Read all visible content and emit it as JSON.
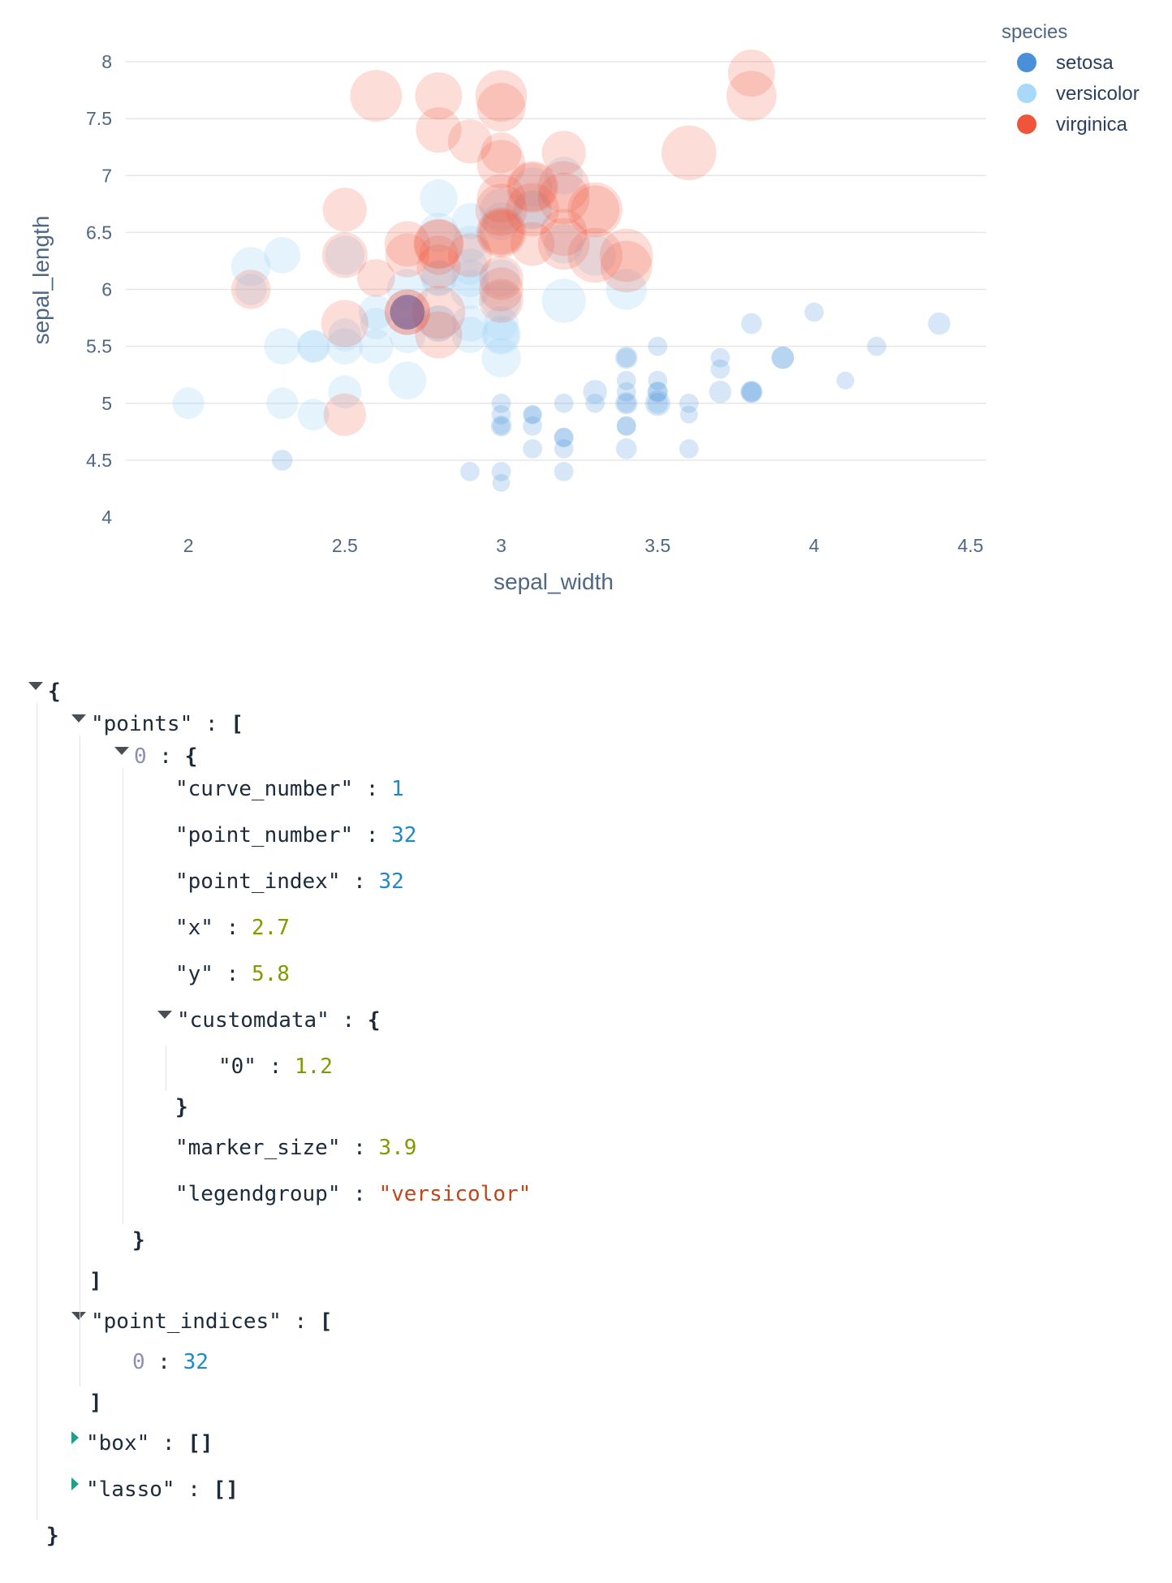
{
  "chart_data": {
    "type": "scatter",
    "title": "",
    "xlabel": "sepal_width",
    "ylabel": "sepal_length",
    "xlim": [
      1.8,
      4.55
    ],
    "ylim": [
      4.0,
      8.1
    ],
    "x_ticks": [
      "2",
      "2.5",
      "3",
      "3.5",
      "4",
      "4.5"
    ],
    "y_ticks": [
      "4",
      "4.5",
      "5",
      "5.5",
      "6",
      "6.5",
      "7",
      "7.5",
      "8"
    ],
    "grid": true,
    "legend": {
      "title": "species",
      "placement": "top-right"
    },
    "series": [
      {
        "name": "setosa",
        "color": "#4a90d9",
        "opacity": 0.22,
        "points": [
          [
            3.5,
            5.1,
            0.2
          ],
          [
            3.0,
            4.9,
            0.2
          ],
          [
            3.2,
            4.7,
            0.2
          ],
          [
            3.1,
            4.6,
            0.2
          ],
          [
            3.6,
            5.0,
            0.2
          ],
          [
            3.9,
            5.4,
            0.4
          ],
          [
            3.4,
            4.6,
            0.3
          ],
          [
            3.4,
            5.0,
            0.2
          ],
          [
            2.9,
            4.4,
            0.2
          ],
          [
            3.1,
            4.9,
            0.1
          ],
          [
            3.7,
            5.4,
            0.2
          ],
          [
            3.4,
            4.8,
            0.2
          ],
          [
            3.0,
            4.8,
            0.1
          ],
          [
            3.0,
            4.3,
            0.1
          ],
          [
            4.0,
            5.8,
            0.2
          ],
          [
            4.4,
            5.7,
            0.4
          ],
          [
            3.9,
            5.4,
            0.4
          ],
          [
            3.5,
            5.1,
            0.3
          ],
          [
            3.8,
            5.7,
            0.3
          ],
          [
            3.8,
            5.1,
            0.3
          ],
          [
            3.4,
            5.4,
            0.2
          ],
          [
            3.7,
            5.1,
            0.4
          ],
          [
            3.6,
            4.6,
            0.2
          ],
          [
            3.3,
            5.1,
            0.5
          ],
          [
            3.4,
            4.8,
            0.2
          ],
          [
            3.0,
            5.0,
            0.2
          ],
          [
            3.4,
            5.0,
            0.4
          ],
          [
            3.5,
            5.2,
            0.2
          ],
          [
            3.4,
            5.2,
            0.2
          ],
          [
            3.2,
            4.7,
            0.2
          ],
          [
            3.1,
            4.8,
            0.2
          ],
          [
            3.4,
            5.4,
            0.4
          ],
          [
            4.1,
            5.2,
            0.1
          ],
          [
            4.2,
            5.5,
            0.2
          ],
          [
            3.1,
            4.9,
            0.2
          ],
          [
            3.2,
            5.0,
            0.2
          ],
          [
            3.5,
            5.5,
            0.2
          ],
          [
            3.6,
            4.9,
            0.1
          ],
          [
            3.0,
            4.4,
            0.2
          ],
          [
            3.4,
            5.1,
            0.2
          ],
          [
            3.5,
            5.0,
            0.3
          ],
          [
            2.3,
            4.5,
            0.3
          ],
          [
            3.2,
            4.4,
            0.2
          ],
          [
            3.5,
            5.0,
            0.6
          ],
          [
            3.8,
            5.1,
            0.4
          ],
          [
            3.0,
            4.8,
            0.3
          ],
          [
            3.8,
            5.1,
            0.2
          ],
          [
            3.2,
            4.6,
            0.2
          ],
          [
            3.7,
            5.3,
            0.2
          ],
          [
            3.3,
            5.0,
            0.2
          ]
        ]
      },
      {
        "name": "versicolor",
        "color": "#a8d8fa",
        "opacity": 0.3,
        "points": [
          [
            3.2,
            7.0,
            1.4
          ],
          [
            3.2,
            6.4,
            1.5
          ],
          [
            3.1,
            6.9,
            1.5
          ],
          [
            2.3,
            5.5,
            1.3
          ],
          [
            2.8,
            6.5,
            1.5
          ],
          [
            2.8,
            5.7,
            1.3
          ],
          [
            3.3,
            6.3,
            1.6
          ],
          [
            2.4,
            4.9,
            1.0
          ],
          [
            2.9,
            6.6,
            1.3
          ],
          [
            2.7,
            5.2,
            1.4
          ],
          [
            2.0,
            5.0,
            1.0
          ],
          [
            3.0,
            5.9,
            1.5
          ],
          [
            2.2,
            6.0,
            1.0
          ],
          [
            2.9,
            6.1,
            1.4
          ],
          [
            2.9,
            5.6,
            1.3
          ],
          [
            3.1,
            6.7,
            1.4
          ],
          [
            3.0,
            5.6,
            1.5
          ],
          [
            2.7,
            5.8,
            1.0
          ],
          [
            2.2,
            6.2,
            1.5
          ],
          [
            2.5,
            5.6,
            1.1
          ],
          [
            3.2,
            5.9,
            1.8
          ],
          [
            2.8,
            6.1,
            1.3
          ],
          [
            2.5,
            6.3,
            1.5
          ],
          [
            2.8,
            6.1,
            1.2
          ],
          [
            2.9,
            6.4,
            1.3
          ],
          [
            3.0,
            6.6,
            1.4
          ],
          [
            2.8,
            6.8,
            1.4
          ],
          [
            3.0,
            6.7,
            1.7
          ],
          [
            2.9,
            6.0,
            1.5
          ],
          [
            2.6,
            5.7,
            1.0
          ],
          [
            2.4,
            5.5,
            1.1
          ],
          [
            2.4,
            5.5,
            1.0
          ],
          [
            2.7,
            5.8,
            1.2
          ],
          [
            2.7,
            6.0,
            1.6
          ],
          [
            3.0,
            5.4,
            1.5
          ],
          [
            3.4,
            6.0,
            1.6
          ],
          [
            3.1,
            6.7,
            1.5
          ],
          [
            2.3,
            6.3,
            1.3
          ],
          [
            3.0,
            5.6,
            1.3
          ],
          [
            2.5,
            5.5,
            1.3
          ],
          [
            2.6,
            5.5,
            1.2
          ],
          [
            3.0,
            6.1,
            1.4
          ],
          [
            2.6,
            5.8,
            1.2
          ],
          [
            2.3,
            5.0,
            1.0
          ],
          [
            2.7,
            5.6,
            1.3
          ],
          [
            3.0,
            5.7,
            1.2
          ],
          [
            2.9,
            5.7,
            1.3
          ],
          [
            2.9,
            6.2,
            1.3
          ],
          [
            2.5,
            5.1,
            1.1
          ],
          [
            2.8,
            5.7,
            1.3
          ]
        ]
      },
      {
        "name": "virginica",
        "color": "#ef553b",
        "opacity": 0.2,
        "points": [
          [
            3.3,
            6.3,
            2.5
          ],
          [
            2.7,
            5.8,
            1.9
          ],
          [
            3.0,
            7.1,
            2.1
          ],
          [
            2.9,
            6.3,
            1.8
          ],
          [
            3.0,
            6.5,
            2.2
          ],
          [
            3.0,
            7.6,
            2.1
          ],
          [
            2.5,
            4.9,
            1.7
          ],
          [
            2.9,
            7.3,
            1.8
          ],
          [
            2.5,
            6.7,
            1.8
          ],
          [
            3.6,
            7.2,
            2.5
          ],
          [
            3.2,
            6.5,
            2.0
          ],
          [
            2.7,
            6.4,
            1.9
          ],
          [
            3.0,
            6.8,
            2.1
          ],
          [
            2.5,
            5.7,
            2.0
          ],
          [
            2.8,
            5.8,
            2.4
          ],
          [
            3.2,
            6.4,
            2.3
          ],
          [
            3.0,
            6.5,
            1.8
          ],
          [
            3.8,
            7.7,
            2.2
          ],
          [
            2.6,
            7.7,
            2.3
          ],
          [
            2.2,
            6.0,
            1.5
          ],
          [
            3.2,
            6.9,
            2.3
          ],
          [
            2.8,
            5.6,
            2.0
          ],
          [
            2.8,
            7.7,
            2.0
          ],
          [
            2.7,
            6.3,
            1.8
          ],
          [
            3.3,
            6.7,
            2.1
          ],
          [
            3.2,
            7.2,
            1.8
          ],
          [
            2.8,
            6.2,
            1.8
          ],
          [
            3.0,
            6.1,
            1.8
          ],
          [
            2.8,
            6.4,
            2.1
          ],
          [
            3.0,
            7.2,
            1.6
          ],
          [
            2.8,
            7.4,
            1.9
          ],
          [
            3.8,
            7.9,
            2.0
          ],
          [
            2.8,
            6.4,
            2.2
          ],
          [
            2.8,
            6.3,
            1.5
          ],
          [
            2.6,
            6.1,
            1.4
          ],
          [
            3.0,
            7.7,
            2.3
          ],
          [
            3.4,
            6.3,
            2.4
          ],
          [
            3.1,
            6.4,
            1.8
          ],
          [
            3.0,
            6.0,
            1.8
          ],
          [
            3.1,
            6.9,
            2.1
          ],
          [
            3.1,
            6.7,
            2.4
          ],
          [
            3.1,
            6.9,
            2.3
          ],
          [
            2.7,
            5.8,
            1.9
          ],
          [
            3.2,
            6.8,
            2.3
          ],
          [
            3.3,
            6.7,
            2.5
          ],
          [
            3.0,
            6.7,
            2.3
          ],
          [
            2.5,
            6.3,
            1.9
          ],
          [
            3.0,
            6.5,
            2.0
          ],
          [
            3.4,
            6.2,
            2.3
          ],
          [
            3.0,
            5.9,
            1.8
          ]
        ]
      }
    ],
    "selected_point": {
      "series": "versicolor",
      "x": 2.7,
      "y": 5.8,
      "size": 1.2
    }
  },
  "json_view": {
    "lines": [
      {
        "indent": 0,
        "tri": "down",
        "parts": [
          [
            "brace",
            "{"
          ]
        ]
      },
      {
        "indent": 1,
        "tri": "down",
        "parts": [
          [
            "key",
            "\"points\""
          ],
          [
            "colon",
            " : "
          ],
          [
            "brace",
            "["
          ]
        ]
      },
      {
        "indent": 2,
        "tri": "down",
        "parts": [
          [
            "idx",
            "0"
          ],
          [
            "colon",
            " : "
          ],
          [
            "brace",
            "{"
          ]
        ]
      },
      {
        "indent": 3,
        "parts": [
          [
            "key",
            "\"curve_number\""
          ],
          [
            "colon",
            " : "
          ],
          [
            "num-int",
            "1"
          ]
        ]
      },
      {
        "indent": 3,
        "parts": [
          [
            "key",
            "\"point_number\""
          ],
          [
            "colon",
            " : "
          ],
          [
            "num-int",
            "32"
          ]
        ]
      },
      {
        "indent": 3,
        "parts": [
          [
            "key",
            "\"point_index\""
          ],
          [
            "colon",
            " : "
          ],
          [
            "num-int",
            "32"
          ]
        ]
      },
      {
        "indent": 3,
        "parts": [
          [
            "key",
            "\"x\""
          ],
          [
            "colon",
            " : "
          ],
          [
            "num-float",
            "2.7"
          ]
        ]
      },
      {
        "indent": 3,
        "parts": [
          [
            "key",
            "\"y\""
          ],
          [
            "colon",
            " : "
          ],
          [
            "num-float",
            "5.8"
          ]
        ]
      },
      {
        "indent": 3,
        "tri": "down",
        "parts": [
          [
            "key",
            "\"customdata\""
          ],
          [
            "colon",
            " : "
          ],
          [
            "brace",
            "{"
          ]
        ]
      },
      {
        "indent": 4,
        "parts": [
          [
            "key",
            "\"0\""
          ],
          [
            "colon",
            " : "
          ],
          [
            "num-float",
            "1.2"
          ]
        ]
      },
      {
        "indent": 3,
        "parts": [
          [
            "brace",
            "}"
          ]
        ]
      },
      {
        "indent": 3,
        "parts": [
          [
            "key",
            "\"marker_size\""
          ],
          [
            "colon",
            " : "
          ],
          [
            "num-float",
            "3.9"
          ]
        ]
      },
      {
        "indent": 3,
        "parts": [
          [
            "key",
            "\"legendgroup\""
          ],
          [
            "colon",
            " : "
          ],
          [
            "str",
            "\"versicolor\""
          ]
        ]
      },
      {
        "indent": 2,
        "parts": [
          [
            "brace",
            "}"
          ]
        ]
      },
      {
        "indent": 1,
        "parts": [
          [
            "brace",
            "]"
          ]
        ]
      },
      {
        "indent": 1,
        "tri": "down",
        "parts": [
          [
            "key",
            "\"point_indices\""
          ],
          [
            "colon",
            " : "
          ],
          [
            "brace",
            "["
          ]
        ]
      },
      {
        "indent": 2,
        "parts": [
          [
            "idx",
            "0"
          ],
          [
            "colon",
            " : "
          ],
          [
            "num-int",
            "32"
          ]
        ]
      },
      {
        "indent": 1,
        "parts": [
          [
            "brace",
            "]"
          ]
        ]
      },
      {
        "indent": 1,
        "tri": "right",
        "parts": [
          [
            "key",
            "\"box\""
          ],
          [
            "colon",
            " : "
          ],
          [
            "brace",
            "[]"
          ]
        ]
      },
      {
        "indent": 1,
        "tri": "right",
        "parts": [
          [
            "key",
            "\"lasso\""
          ],
          [
            "colon",
            " : "
          ],
          [
            "brace",
            "[]"
          ]
        ]
      },
      {
        "indent": 0,
        "parts": [
          [
            "brace",
            "}"
          ]
        ]
      }
    ]
  }
}
